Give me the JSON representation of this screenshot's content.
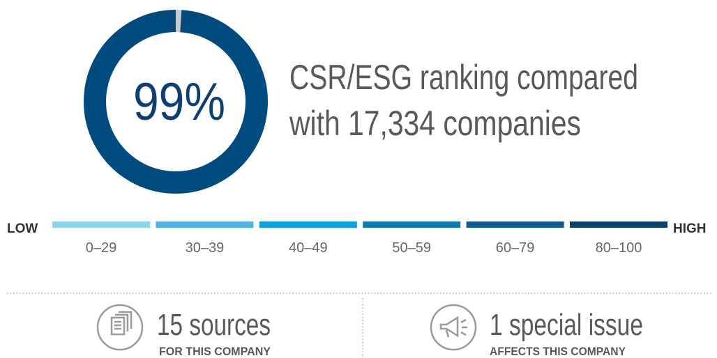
{
  "score": {
    "value": 99,
    "label": "99%"
  },
  "description": [
    "CSR/ESG ranking compared",
    "with 17,334 companies"
  ],
  "scale": {
    "low": "LOW",
    "high": "HIGH",
    "bands": [
      {
        "label": "0–29",
        "color": "#8dd3f2"
      },
      {
        "label": "30–39",
        "color": "#4eb3e6"
      },
      {
        "label": "40–49",
        "color": "#0aa2e0"
      },
      {
        "label": "50–59",
        "color": "#0a7bb5"
      },
      {
        "label": "60–79",
        "color": "#0f5a92"
      },
      {
        "label": "80–100",
        "color": "#0b416f"
      }
    ]
  },
  "stats": [
    {
      "title": "15 sources",
      "subtitle": "FOR THIS COMPANY"
    },
    {
      "title": "1 special issue",
      "subtitle": "AFFECTS THIS COMPANY"
    }
  ]
}
